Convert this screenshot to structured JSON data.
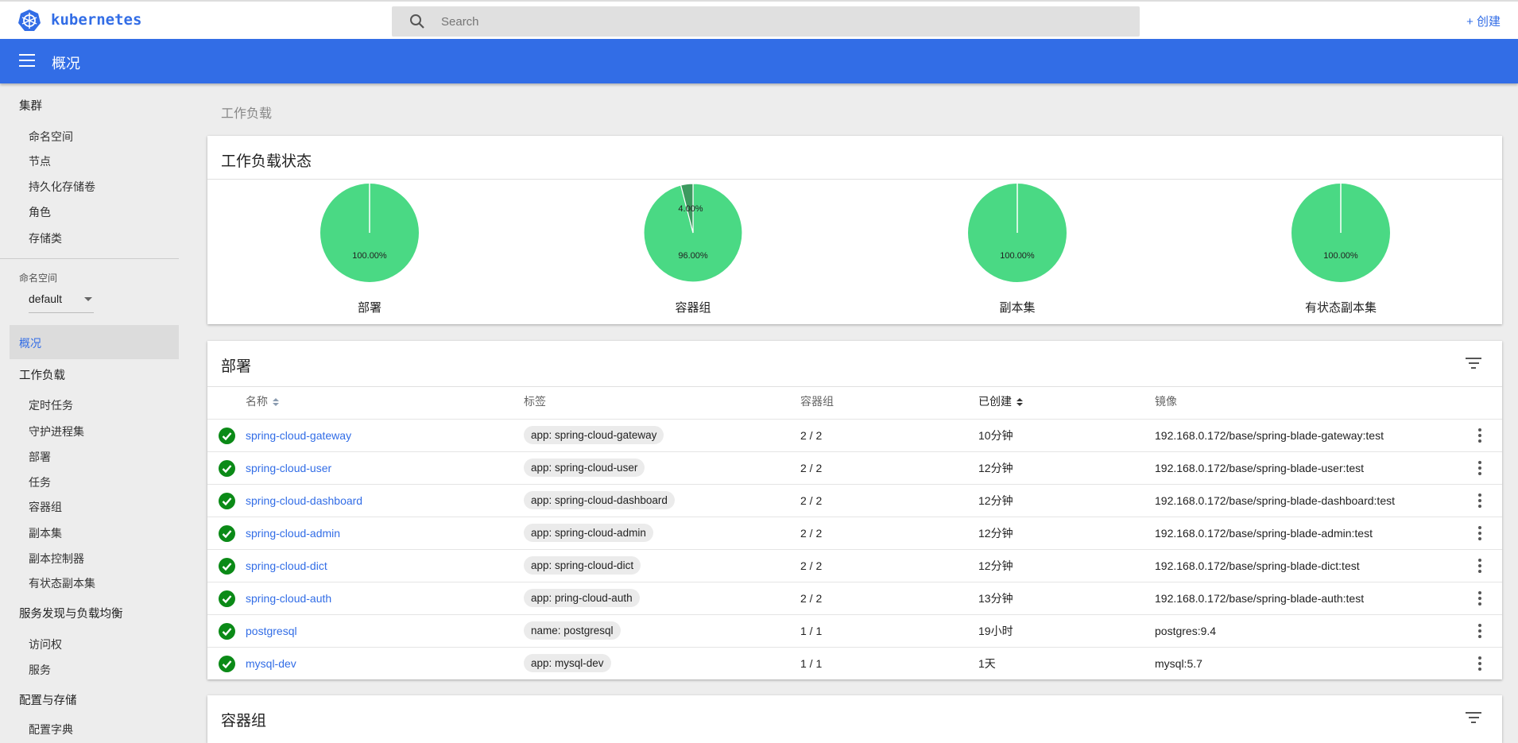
{
  "header": {
    "brand": "kubernetes",
    "search_placeholder": "Search",
    "create_label": "+ 创建"
  },
  "toolbar": {
    "title": "概况"
  },
  "sidebar": {
    "cluster": {
      "label": "集群",
      "items": [
        "命名空间",
        "节点",
        "持久化存储卷",
        "角色",
        "存储类"
      ]
    },
    "namespace_label": "命名空间",
    "namespace_value": "default",
    "overview": "概况",
    "workloads": {
      "label": "工作负载",
      "items": [
        "定时任务",
        "守护进程集",
        "部署",
        "任务",
        "容器组",
        "副本集",
        "副本控制器",
        "有状态副本集"
      ]
    },
    "discovery": {
      "label": "服务发现与负载均衡",
      "items": [
        "访问权",
        "服务"
      ]
    },
    "config": {
      "label": "配置与存储",
      "items": [
        "配置字典"
      ]
    }
  },
  "breadcrumb": "工作负载",
  "status_card": {
    "title": "工作负载状态",
    "colors": {
      "running": "#4ad984",
      "pending": "#3c9a5f"
    },
    "pies": [
      {
        "label": "部署",
        "slices": [
          {
            "value": 100,
            "text": "100.00%"
          }
        ]
      },
      {
        "label": "容器组",
        "slices": [
          {
            "value": 96,
            "text": "96.00%"
          },
          {
            "value": 4,
            "text": "4.00%"
          }
        ]
      },
      {
        "label": "副本集",
        "slices": [
          {
            "value": 100,
            "text": "100.00%"
          }
        ]
      },
      {
        "label": "有状态副本集",
        "slices": [
          {
            "value": 100,
            "text": "100.00%"
          }
        ]
      }
    ]
  },
  "deployments": {
    "title": "部署",
    "columns": [
      "名称",
      "标签",
      "容器组",
      "已创建",
      "镜像"
    ],
    "rows": [
      {
        "name": "spring-cloud-gateway",
        "label": "app: spring-cloud-gateway",
        "pods": "2 / 2",
        "age": "10分钟",
        "image": "192.168.0.172/base/spring-blade-gateway:test"
      },
      {
        "name": "spring-cloud-user",
        "label": "app: spring-cloud-user",
        "pods": "2 / 2",
        "age": "12分钟",
        "image": "192.168.0.172/base/spring-blade-user:test"
      },
      {
        "name": "spring-cloud-dashboard",
        "label": "app: spring-cloud-dashboard",
        "pods": "2 / 2",
        "age": "12分钟",
        "image": "192.168.0.172/base/spring-blade-dashboard:test"
      },
      {
        "name": "spring-cloud-admin",
        "label": "app: spring-cloud-admin",
        "pods": "2 / 2",
        "age": "12分钟",
        "image": "192.168.0.172/base/spring-blade-admin:test"
      },
      {
        "name": "spring-cloud-dict",
        "label": "app: spring-cloud-dict",
        "pods": "2 / 2",
        "age": "12分钟",
        "image": "192.168.0.172/base/spring-blade-dict:test"
      },
      {
        "name": "spring-cloud-auth",
        "label": "app: pring-cloud-auth",
        "pods": "2 / 2",
        "age": "13分钟",
        "image": "192.168.0.172/base/spring-blade-auth:test"
      },
      {
        "name": "postgresql",
        "label": "name: postgresql",
        "pods": "1 / 1",
        "age": "19小时",
        "image": "postgres:9.4"
      },
      {
        "name": "mysql-dev",
        "label": "app: mysql-dev",
        "pods": "1 / 1",
        "age": "1天",
        "image": "mysql:5.7"
      }
    ]
  },
  "pods_card": {
    "title": "容器组"
  }
}
